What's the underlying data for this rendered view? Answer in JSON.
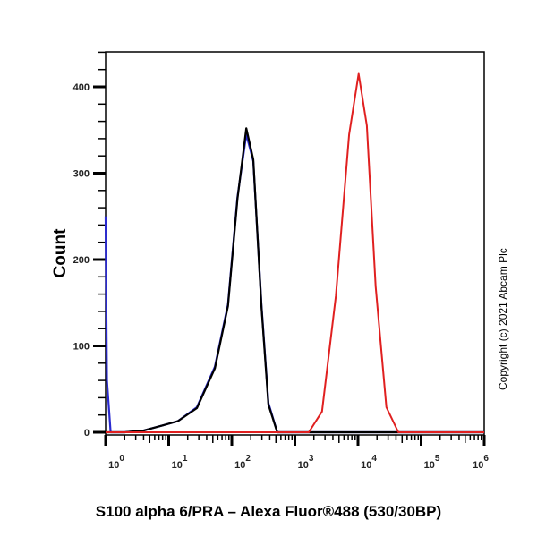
{
  "chart_data": {
    "type": "line",
    "title": "",
    "xlabel": "S100 alpha 6/PRA – Alexa Fluor®488 (530/30BP)",
    "ylabel": "Count",
    "x_scale": "log",
    "xlim": [
      1,
      1000000
    ],
    "ylim": [
      0,
      440
    ],
    "x_ticks": [
      {
        "base": "10",
        "exp": "0",
        "value": 1
      },
      {
        "base": "10",
        "exp": "1",
        "value": 10
      },
      {
        "base": "10",
        "exp": "2",
        "value": 100
      },
      {
        "base": "10",
        "exp": "3",
        "value": 1000
      },
      {
        "base": "10",
        "exp": "4",
        "value": 10000
      },
      {
        "base": "10",
        "exp": "5",
        "value": 100000
      },
      {
        "base": "10",
        "exp": "6",
        "value": 1000000
      }
    ],
    "y_ticks": [
      "0",
      "100",
      "200",
      "300",
      "400"
    ],
    "grid": false,
    "series": [
      {
        "color": "#2a2ad0",
        "x": [
          1,
          1.05,
          1.2,
          2,
          4,
          8,
          14,
          28,
          54,
          87,
          123,
          170,
          219,
          295,
          380,
          525,
          1000000
        ],
        "y": [
          250,
          60,
          0,
          0,
          2,
          8,
          13,
          29,
          76,
          148,
          272,
          345,
          314,
          148,
          34,
          0,
          0
        ]
      },
      {
        "color": "#000000",
        "x": [
          1,
          1.05,
          1.2,
          2,
          4,
          8,
          14,
          28,
          54,
          87,
          123,
          170,
          219,
          295,
          380,
          525,
          1000000
        ],
        "y": [
          0,
          0,
          0,
          0,
          2,
          8,
          13,
          28,
          74,
          146,
          270,
          352,
          316,
          146,
          32,
          0,
          0
        ]
      },
      {
        "color": "#e02020",
        "x": [
          1,
          1660,
          2690,
          4470,
          7240,
          10230,
          13800,
          19050,
          28180,
          43650,
          1000000
        ],
        "y": [
          0,
          0,
          24,
          158,
          345,
          415,
          355,
          169,
          29,
          0,
          0
        ]
      }
    ]
  },
  "copyright": "Copyright (c) 2021 Abcam Plc"
}
